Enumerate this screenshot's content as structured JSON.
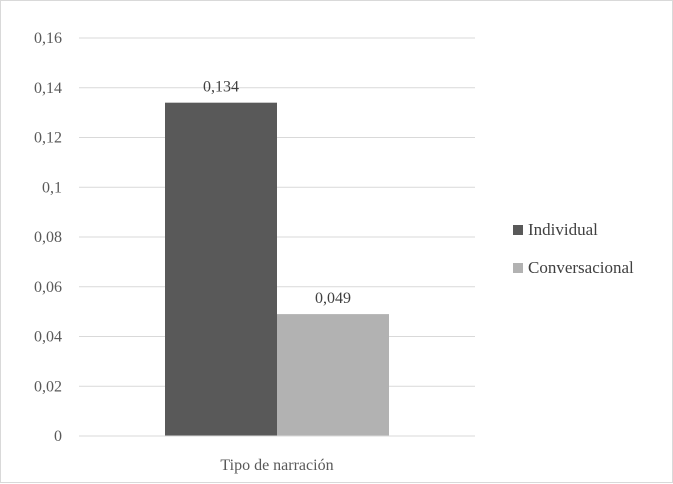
{
  "chart_data": {
    "type": "bar",
    "categories": [
      "Tipo de narración"
    ],
    "series": [
      {
        "name": "Individual",
        "values": [
          0.134
        ],
        "color": "#595959",
        "label": "0,134"
      },
      {
        "name": "Conversacional",
        "values": [
          0.049
        ],
        "color": "#b2b2b2",
        "label": "0,049"
      }
    ],
    "ylim": [
      0,
      0.16
    ],
    "yticks": [
      {
        "value": 0,
        "label": "0"
      },
      {
        "value": 0.02,
        "label": "0,02"
      },
      {
        "value": 0.04,
        "label": "0,04"
      },
      {
        "value": 0.06,
        "label": "0,06"
      },
      {
        "value": 0.08,
        "label": "0,08"
      },
      {
        "value": 0.1,
        "label": "0,1"
      },
      {
        "value": 0.12,
        "label": "0,12"
      },
      {
        "value": 0.14,
        "label": "0,14"
      },
      {
        "value": 0.16,
        "label": "0,16"
      }
    ],
    "grid": true,
    "gridline_color": "#d9d9d9",
    "legend_position": "right",
    "title": "",
    "xlabel": "",
    "ylabel": ""
  }
}
